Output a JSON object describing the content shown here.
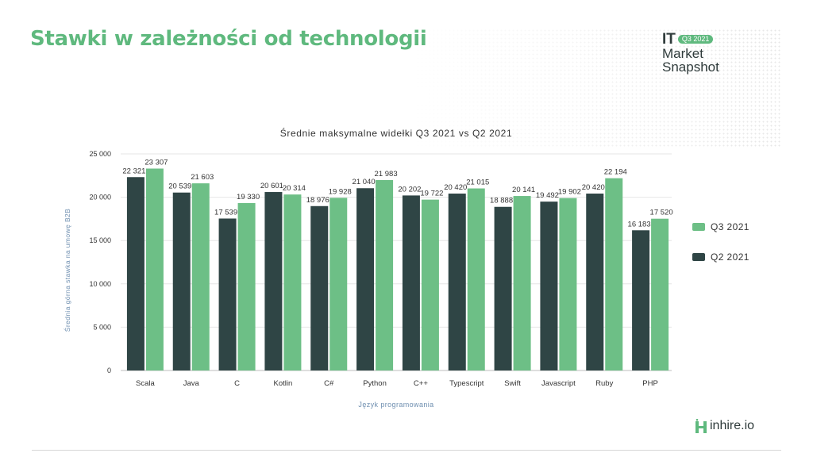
{
  "header": {
    "title": "Stawki w zależności od technologii"
  },
  "brand": {
    "it": "IT",
    "badge": "Q3 2021",
    "line1": "Market",
    "line2": "Snapshot"
  },
  "logo": {
    "text": "inhire.io"
  },
  "colors": {
    "q3": "#6dbf86",
    "q2": "#2f4545",
    "title": "#5fb97e",
    "grid": "#e6e6e6"
  },
  "chart_data": {
    "type": "bar",
    "title": "Średnie maksymalne widełki Q3 2021 vs Q2 2021",
    "xlabel": "Język programowania",
    "ylabel": "Średnia górna stawka na umowę B2B",
    "ylim": [
      0,
      25000
    ],
    "yticks": [
      0,
      5000,
      10000,
      15000,
      20000,
      25000
    ],
    "ytick_labels": [
      "0",
      "5 000",
      "10 000",
      "15 000",
      "20 000",
      "25 000"
    ],
    "categories": [
      "Scala",
      "Java",
      "C",
      "Kotlin",
      "C#",
      "Python",
      "C++",
      "Typescript",
      "Swift",
      "Javascript",
      "Ruby",
      "PHP"
    ],
    "legend_position": "right",
    "grid": true,
    "series": [
      {
        "name": "Q2 2021",
        "values": [
          22321,
          20539,
          17539,
          20601,
          18976,
          21040,
          20202,
          20420,
          18888,
          19492,
          20420,
          16183
        ],
        "labels": [
          "22 321",
          "20 539",
          "17 539",
          "20 601",
          "18 976",
          "21 040",
          "20 202",
          "20 420",
          "18 888",
          "19 492",
          "20 420",
          "16 183"
        ]
      },
      {
        "name": "Q3 2021",
        "values": [
          23307,
          21603,
          19330,
          20314,
          19928,
          21983,
          19722,
          21015,
          20141,
          19902,
          22194,
          17520
        ],
        "labels": [
          "23 307",
          "21 603",
          "19 330",
          "20 314",
          "19 928",
          "21 983",
          "19 722",
          "21 015",
          "20 141",
          "19 902",
          "22 194",
          "17 520"
        ]
      }
    ],
    "legend_order": [
      "Q3 2021",
      "Q2 2021"
    ]
  }
}
